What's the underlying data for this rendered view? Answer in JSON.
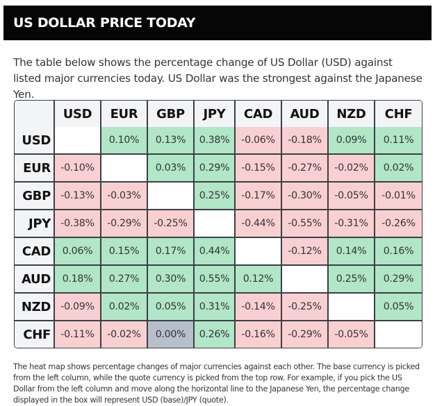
{
  "header": {
    "title": "US DOLLAR PRICE TODAY"
  },
  "intro": "The table below shows the percentage change of US Dollar (USD) against listed major currencies today. US Dollar was the strongest against the Japanese Yen.",
  "colors": {
    "positive": "#b1e6c7",
    "negative": "#f9d0d1",
    "zero": "#b7bfca",
    "header_bg": "#060606"
  },
  "chart_data": {
    "type": "heatmap",
    "columns": [
      "USD",
      "EUR",
      "GBP",
      "JPY",
      "CAD",
      "AUD",
      "NZD",
      "CHF"
    ],
    "rows": [
      "USD",
      "EUR",
      "GBP",
      "JPY",
      "CAD",
      "AUD",
      "NZD",
      "CHF"
    ],
    "values": [
      [
        null,
        "0.10%",
        "0.13%",
        "0.38%",
        "-0.06%",
        "-0.18%",
        "0.09%",
        "0.11%"
      ],
      [
        "-0.10%",
        null,
        "0.03%",
        "0.29%",
        "-0.15%",
        "-0.27%",
        "-0.02%",
        "0.02%"
      ],
      [
        "-0.13%",
        "-0.03%",
        null,
        "0.25%",
        "-0.17%",
        "-0.30%",
        "-0.05%",
        "-0.01%"
      ],
      [
        "-0.38%",
        "-0.29%",
        "-0.25%",
        null,
        "-0.44%",
        "-0.55%",
        "-0.31%",
        "-0.26%"
      ],
      [
        "0.06%",
        "0.15%",
        "0.17%",
        "0.44%",
        null,
        "-0.12%",
        "0.14%",
        "0.16%"
      ],
      [
        "0.18%",
        "0.27%",
        "0.30%",
        "0.55%",
        "0.12%",
        null,
        "0.25%",
        "0.29%"
      ],
      [
        "-0.09%",
        "0.02%",
        "0.05%",
        "0.31%",
        "-0.14%",
        "-0.25%",
        null,
        "0.05%"
      ],
      [
        "-0.11%",
        "-0.02%",
        "0.00%",
        "0.26%",
        "-0.16%",
        "-0.29%",
        "-0.05%",
        null
      ]
    ]
  },
  "footnote": "The heat map shows percentage changes of major currencies against each other. The base currency is picked from the left column, while the quote currency is picked from the top row. For example, if you pick the US Dollar from the left column and move along the horizontal line to the Japanese Yen, the percentage change displayed in the box will represent USD (base)/JPY (quote)."
}
